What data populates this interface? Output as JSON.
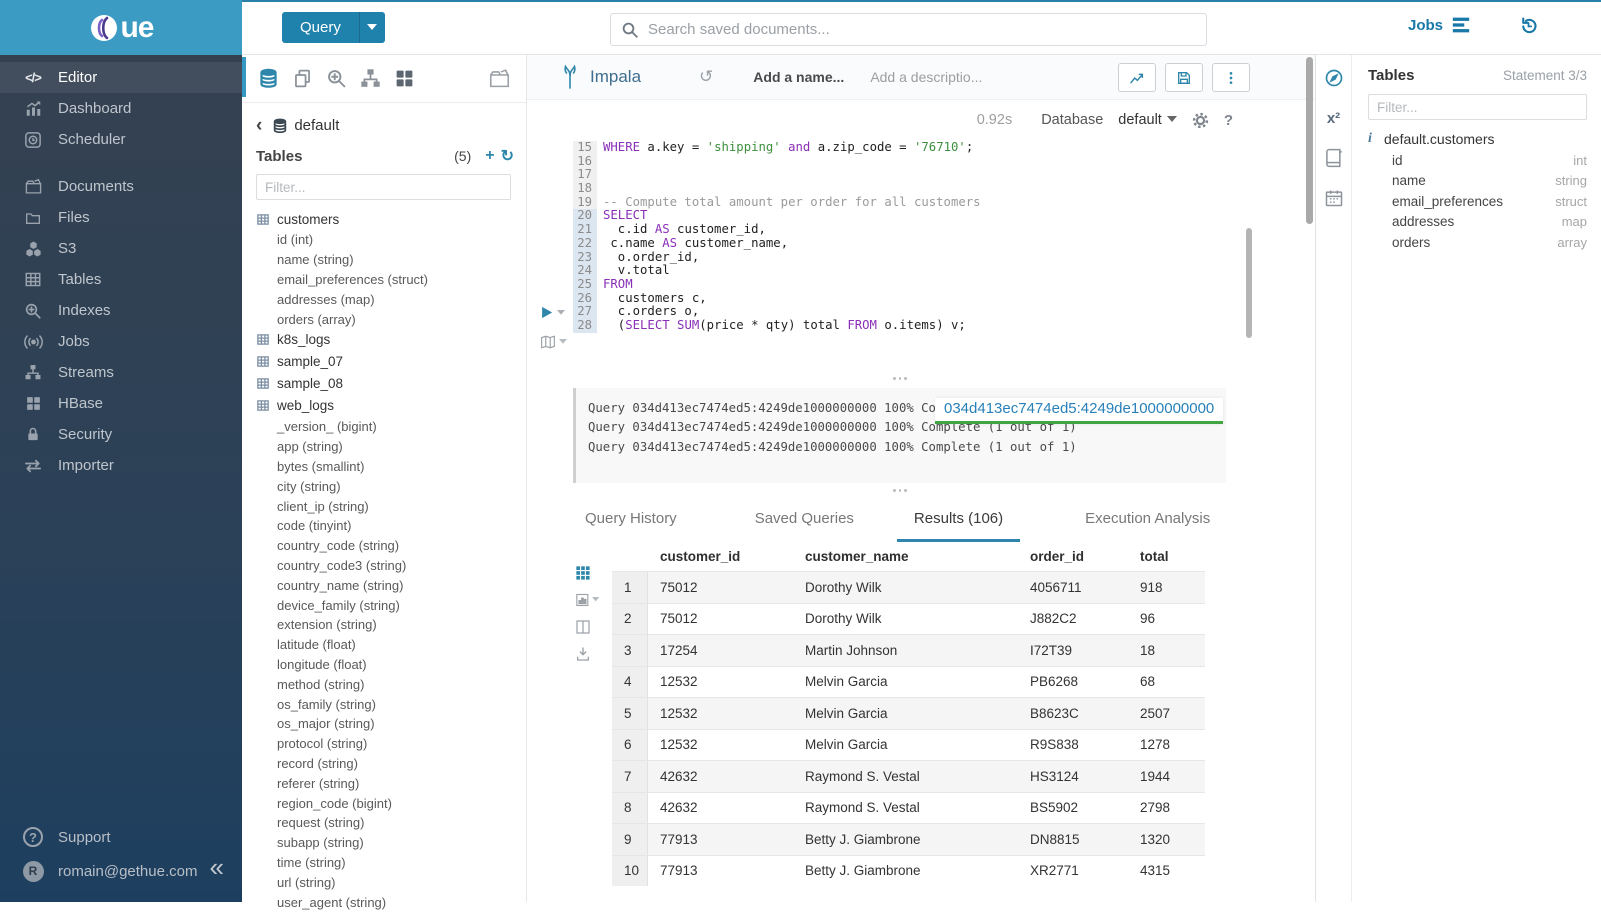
{
  "accent": "#1f82ad",
  "sidebar": {
    "items": [
      {
        "label": "Editor",
        "icon": "code-icon",
        "active": true
      },
      {
        "label": "Dashboard",
        "icon": "dashboard-icon"
      },
      {
        "label": "Scheduler",
        "icon": "scheduler-icon"
      },
      {
        "label": "",
        "icon": "",
        "gap": true
      },
      {
        "label": "Documents",
        "icon": "documents-icon"
      },
      {
        "label": "Files",
        "icon": "folder-icon"
      },
      {
        "label": "S3",
        "icon": "cubes-icon"
      },
      {
        "label": "Tables",
        "icon": "table-icon"
      },
      {
        "label": "Indexes",
        "icon": "search-plus-icon"
      },
      {
        "label": "Jobs",
        "icon": "broadcast-icon"
      },
      {
        "label": "Streams",
        "icon": "sitemap-icon"
      },
      {
        "label": "HBase",
        "icon": "grid4-icon"
      },
      {
        "label": "Security",
        "icon": "lock-icon"
      },
      {
        "label": "Importer",
        "icon": "swap-icon"
      }
    ],
    "footer": {
      "support": "Support",
      "user": "romain@gethue.com",
      "avatar_letter": "R"
    }
  },
  "topbar": {
    "query_label": "Query",
    "search_placeholder": "Search saved documents...",
    "jobs_label": "Jobs"
  },
  "leftpanel": {
    "breadcrumb_db": "default",
    "tables_label": "Tables",
    "tables_count": "(5)",
    "filter_placeholder": "Filter...",
    "tree": [
      {
        "label": "customers",
        "kind": "table"
      },
      {
        "label": "id (int)",
        "kind": "col"
      },
      {
        "label": "name (string)",
        "kind": "col"
      },
      {
        "label": "email_preferences (struct)",
        "kind": "col"
      },
      {
        "label": "addresses (map)",
        "kind": "col"
      },
      {
        "label": "orders (array)",
        "kind": "col"
      },
      {
        "label": "k8s_logs",
        "kind": "table"
      },
      {
        "label": "sample_07",
        "kind": "table"
      },
      {
        "label": "sample_08",
        "kind": "table"
      },
      {
        "label": "web_logs",
        "kind": "table"
      },
      {
        "label": "_version_ (bigint)",
        "kind": "col"
      },
      {
        "label": "app (string)",
        "kind": "col"
      },
      {
        "label": "bytes (smallint)",
        "kind": "col"
      },
      {
        "label": "city (string)",
        "kind": "col"
      },
      {
        "label": "client_ip (string)",
        "kind": "col"
      },
      {
        "label": "code (tinyint)",
        "kind": "col"
      },
      {
        "label": "country_code (string)",
        "kind": "col"
      },
      {
        "label": "country_code3 (string)",
        "kind": "col"
      },
      {
        "label": "country_name (string)",
        "kind": "col"
      },
      {
        "label": "device_family (string)",
        "kind": "col"
      },
      {
        "label": "extension (string)",
        "kind": "col"
      },
      {
        "label": "latitude (float)",
        "kind": "col"
      },
      {
        "label": "longitude (float)",
        "kind": "col"
      },
      {
        "label": "method (string)",
        "kind": "col"
      },
      {
        "label": "os_family (string)",
        "kind": "col"
      },
      {
        "label": "os_major (string)",
        "kind": "col"
      },
      {
        "label": "protocol (string)",
        "kind": "col"
      },
      {
        "label": "record (string)",
        "kind": "col"
      },
      {
        "label": "referer (string)",
        "kind": "col"
      },
      {
        "label": "region_code (bigint)",
        "kind": "col"
      },
      {
        "label": "request (string)",
        "kind": "col"
      },
      {
        "label": "subapp (string)",
        "kind": "col"
      },
      {
        "label": "time (string)",
        "kind": "col"
      },
      {
        "label": "url (string)",
        "kind": "col"
      },
      {
        "label": "user_agent (string)",
        "kind": "col"
      }
    ]
  },
  "snippet": {
    "engine": "Impala",
    "name_placeholder": "Add a name...",
    "description_placeholder": "Add a descriptio...",
    "duration": "0.92s",
    "database_label": "Database",
    "database_value": "default"
  },
  "code": {
    "lines": [
      {
        "n": "15",
        "active": false,
        "segs": [
          [
            "k",
            "WHERE"
          ],
          [
            "p",
            " a.key = "
          ],
          [
            "s",
            "'shipping'"
          ],
          [
            "p",
            " "
          ],
          [
            "k",
            "and"
          ],
          [
            "p",
            " a.zip_code = "
          ],
          [
            "s",
            "'76710'"
          ],
          [
            "p",
            ";"
          ]
        ]
      },
      {
        "n": "16",
        "active": false,
        "segs": []
      },
      {
        "n": "17",
        "active": false,
        "segs": []
      },
      {
        "n": "18",
        "active": false,
        "segs": []
      },
      {
        "n": "19",
        "active": false,
        "segs": [
          [
            "c",
            "-- Compute total amount per order for all customers"
          ]
        ]
      },
      {
        "n": "20",
        "active": true,
        "segs": [
          [
            "k",
            "SELECT"
          ]
        ]
      },
      {
        "n": "21",
        "active": true,
        "segs": [
          [
            "p",
            "  c.id "
          ],
          [
            "k",
            "AS"
          ],
          [
            "p",
            " customer_id,"
          ]
        ]
      },
      {
        "n": "22",
        "active": true,
        "segs": [
          [
            "p",
            " c.name "
          ],
          [
            "k",
            "AS"
          ],
          [
            "p",
            " customer_name,"
          ]
        ]
      },
      {
        "n": "23",
        "active": true,
        "segs": [
          [
            "p",
            "  o.order_id,"
          ]
        ]
      },
      {
        "n": "24",
        "active": true,
        "segs": [
          [
            "p",
            "  v.total"
          ]
        ]
      },
      {
        "n": "25",
        "active": true,
        "segs": [
          [
            "k",
            "FROM"
          ]
        ]
      },
      {
        "n": "26",
        "active": true,
        "segs": [
          [
            "p",
            "  customers c,"
          ]
        ]
      },
      {
        "n": "27",
        "active": true,
        "segs": [
          [
            "p",
            "  c.orders o,"
          ]
        ]
      },
      {
        "n": "28",
        "active": true,
        "segs": [
          [
            "p",
            "  ("
          ],
          [
            "k",
            "SELECT"
          ],
          [
            "p",
            " "
          ],
          [
            "k",
            "SUM"
          ],
          [
            "p",
            "(price * qty) total "
          ],
          [
            "k",
            "FROM"
          ],
          [
            "p",
            " o.items) v;"
          ]
        ]
      }
    ]
  },
  "log": {
    "lines": [
      "Query 034d413ec7474ed5:4249de1000000000 100% Complete (1 out of 1)",
      "Query 034d413ec7474ed5:4249de1000000000 100% Complete (1 out of 1)",
      "Query 034d413ec7474ed5:4249de1000000000 100% Complete (1 out of 1)"
    ],
    "tooltip": "034d413ec7474ed5:4249de1000000000"
  },
  "tabs": [
    {
      "label": "Query History",
      "active": false
    },
    {
      "label": "Saved Queries",
      "active": false
    },
    {
      "label": "Results (106)",
      "active": true
    },
    {
      "label": "Execution Analysis",
      "active": false
    }
  ],
  "results": {
    "columns": [
      "customer_id",
      "customer_name",
      "order_id",
      "total"
    ],
    "rows": [
      [
        "1",
        "75012",
        "Dorothy Wilk",
        "4056711",
        "918"
      ],
      [
        "2",
        "75012",
        "Dorothy Wilk",
        "J882C2",
        "96"
      ],
      [
        "3",
        "17254",
        "Martin Johnson",
        "I72T39",
        "18"
      ],
      [
        "4",
        "12532",
        "Melvin Garcia",
        "PB6268",
        "68"
      ],
      [
        "5",
        "12532",
        "Melvin Garcia",
        "B8623C",
        "2507"
      ],
      [
        "6",
        "12532",
        "Melvin Garcia",
        "R9S838",
        "1278"
      ],
      [
        "7",
        "42632",
        "Raymond S. Vestal",
        "HS3124",
        "1944"
      ],
      [
        "8",
        "42632",
        "Raymond S. Vestal",
        "BS5902",
        "2798"
      ],
      [
        "9",
        "77913",
        "Betty J. Giambrone",
        "DN8815",
        "1320"
      ],
      [
        "10",
        "77913",
        "Betty J. Giambrone",
        "XR2771",
        "4315"
      ]
    ]
  },
  "rightpanel": {
    "tables_label": "Tables",
    "statement": "Statement 3/3",
    "filter_placeholder": "Filter...",
    "table_name": "default.customers",
    "columns": [
      {
        "name": "id",
        "type": "int"
      },
      {
        "name": "name",
        "type": "string"
      },
      {
        "name": "email_preferences",
        "type": "struct"
      },
      {
        "name": "addresses",
        "type": "map"
      },
      {
        "name": "orders",
        "type": "array"
      }
    ]
  }
}
